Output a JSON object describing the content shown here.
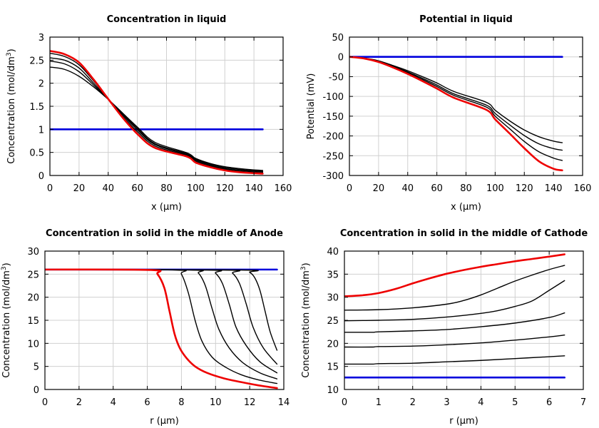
{
  "colors": {
    "initial": "#0000dd",
    "final": "#ee0000",
    "intermediate": "#000000",
    "grid": "#d0d0d0"
  },
  "chart_data": [
    {
      "type": "line",
      "title": "Concentration in liquid",
      "xlabel": "x (µm)",
      "ylabel_main": "Concentration (mol/dm",
      "ylabel_sup": "3",
      "ylabel_end": ")",
      "xlim": [
        0,
        160
      ],
      "ylim": [
        0,
        3
      ],
      "xticks": [
        0,
        20,
        40,
        60,
        80,
        100,
        120,
        140,
        160
      ],
      "yticks": [
        0,
        0.5,
        1,
        1.5,
        2,
        2.5,
        3
      ],
      "series": [
        {
          "name": "initial",
          "role": "initial",
          "x": [
            0,
            146
          ],
          "y": [
            1.0,
            1.0
          ]
        },
        {
          "name": "t1",
          "role": "intermediate",
          "x": [
            0,
            10,
            20,
            30,
            40,
            50,
            60,
            72,
            94,
            100,
            110,
            120,
            130,
            140,
            146
          ],
          "y": [
            2.35,
            2.3,
            2.15,
            1.92,
            1.65,
            1.35,
            1.05,
            0.72,
            0.49,
            0.37,
            0.26,
            0.19,
            0.15,
            0.12,
            0.11
          ]
        },
        {
          "name": "t2",
          "role": "intermediate",
          "x": [
            0,
            10,
            20,
            30,
            40,
            50,
            60,
            72,
            94,
            100,
            110,
            120,
            130,
            140,
            146
          ],
          "y": [
            2.48,
            2.42,
            2.25,
            1.96,
            1.65,
            1.33,
            1.02,
            0.69,
            0.47,
            0.35,
            0.24,
            0.17,
            0.13,
            0.1,
            0.09
          ]
        },
        {
          "name": "t3",
          "role": "intermediate",
          "x": [
            0,
            10,
            20,
            30,
            40,
            50,
            60,
            72,
            94,
            100,
            110,
            120,
            130,
            140,
            146
          ],
          "y": [
            2.55,
            2.5,
            2.33,
            2.0,
            1.66,
            1.31,
            0.99,
            0.67,
            0.45,
            0.33,
            0.22,
            0.15,
            0.11,
            0.09,
            0.08
          ]
        },
        {
          "name": "t4",
          "role": "intermediate",
          "x": [
            0,
            10,
            20,
            30,
            40,
            50,
            60,
            72,
            94,
            100,
            110,
            120,
            130,
            140,
            146
          ],
          "y": [
            2.65,
            2.58,
            2.4,
            2.05,
            1.66,
            1.28,
            0.95,
            0.64,
            0.43,
            0.31,
            0.2,
            0.13,
            0.09,
            0.07,
            0.06
          ]
        },
        {
          "name": "final",
          "role": "final",
          "x": [
            0,
            10,
            20,
            30,
            40,
            50,
            60,
            72,
            94,
            100,
            110,
            120,
            130,
            140,
            146
          ],
          "y": [
            2.7,
            2.63,
            2.45,
            2.08,
            1.66,
            1.25,
            0.9,
            0.6,
            0.41,
            0.28,
            0.18,
            0.11,
            0.07,
            0.05,
            0.04
          ]
        }
      ]
    },
    {
      "type": "line",
      "title": "Potential in liquid",
      "xlabel": "x (µm)",
      "ylabel_main": "Potential (mV)",
      "ylabel_sup": "",
      "ylabel_end": "",
      "xlim": [
        0,
        160
      ],
      "ylim": [
        -300,
        50
      ],
      "xticks": [
        0,
        20,
        40,
        60,
        80,
        100,
        120,
        140,
        160
      ],
      "yticks": [
        -300,
        -250,
        -200,
        -150,
        -100,
        -50,
        0,
        50
      ],
      "series": [
        {
          "name": "initial",
          "role": "initial",
          "x": [
            0,
            146
          ],
          "y": [
            0,
            0
          ]
        },
        {
          "name": "t1",
          "role": "intermediate",
          "x": [
            0,
            10,
            20,
            30,
            40,
            50,
            60,
            72,
            94,
            100,
            110,
            120,
            130,
            140,
            146
          ],
          "y": [
            0,
            -3,
            -10,
            -22,
            -35,
            -50,
            -66,
            -88,
            -115,
            -135,
            -162,
            -185,
            -202,
            -213,
            -217
          ]
        },
        {
          "name": "t2",
          "role": "intermediate",
          "x": [
            0,
            10,
            20,
            30,
            40,
            50,
            60,
            72,
            94,
            100,
            110,
            120,
            130,
            140,
            146
          ],
          "y": [
            0,
            -3,
            -11,
            -24,
            -38,
            -54,
            -71,
            -94,
            -122,
            -143,
            -172,
            -199,
            -220,
            -232,
            -236
          ]
        },
        {
          "name": "t3",
          "role": "intermediate",
          "x": [
            0,
            10,
            20,
            30,
            40,
            50,
            60,
            72,
            94,
            100,
            110,
            120,
            130,
            140,
            146
          ],
          "y": [
            0,
            -4,
            -12,
            -25,
            -40,
            -57,
            -75,
            -98,
            -127,
            -150,
            -182,
            -214,
            -240,
            -256,
            -262
          ]
        },
        {
          "name": "final",
          "role": "final",
          "x": [
            0,
            10,
            20,
            30,
            40,
            50,
            60,
            72,
            94,
            100,
            110,
            120,
            130,
            140,
            146
          ],
          "y": [
            0,
            -4,
            -13,
            -27,
            -43,
            -61,
            -80,
            -104,
            -134,
            -158,
            -194,
            -231,
            -264,
            -283,
            -287
          ]
        }
      ]
    },
    {
      "type": "line",
      "title": "Concentration in solid in the middle of Anode",
      "xlabel": "r (µm)",
      "ylabel_main": "Concentration (mol/dm",
      "ylabel_sup": "3",
      "ylabel_end": ")",
      "xlim": [
        0,
        14
      ],
      "ylim": [
        0,
        30
      ],
      "xticks": [
        0,
        2,
        4,
        6,
        8,
        10,
        12,
        14
      ],
      "yticks": [
        0,
        5,
        10,
        15,
        20,
        25,
        30
      ],
      "series": [
        {
          "name": "initial",
          "role": "initial",
          "x": [
            0,
            13.6
          ],
          "y": [
            26,
            26
          ]
        },
        {
          "name": "t1",
          "role": "intermediate",
          "x": [
            0,
            11.5,
            12,
            12.3,
            12.6,
            12.9,
            13.2,
            13.6
          ],
          "y": [
            26,
            25.9,
            25.4,
            24.2,
            21.5,
            17,
            12.5,
            8.5
          ]
        },
        {
          "name": "t2",
          "role": "intermediate",
          "x": [
            0,
            10.5,
            11,
            11.4,
            11.8,
            12.2,
            12.8,
            13.6
          ],
          "y": [
            26,
            25.9,
            25.2,
            23,
            18.5,
            13.5,
            9,
            5.5
          ]
        },
        {
          "name": "t3",
          "role": "intermediate",
          "x": [
            0,
            9.5,
            10,
            10.4,
            10.8,
            11.2,
            11.8,
            12.6,
            13.6
          ],
          "y": [
            26,
            25.9,
            25.2,
            23,
            18.5,
            13.5,
            9.5,
            6,
            3.6
          ]
        },
        {
          "name": "t4",
          "role": "intermediate",
          "x": [
            0,
            8.5,
            9,
            9.4,
            9.8,
            10.2,
            10.8,
            11.6,
            12.6,
            13.6
          ],
          "y": [
            26,
            25.9,
            25.2,
            22.5,
            17.5,
            13,
            9,
            5.8,
            3.6,
            2.3
          ]
        },
        {
          "name": "t5",
          "role": "intermediate",
          "x": [
            0,
            7.6,
            8,
            8.4,
            8.8,
            9.2,
            9.8,
            10.6,
            11.5,
            12.5,
            13.6
          ],
          "y": [
            26,
            25.9,
            25,
            21,
            15,
            10.5,
            7,
            4.8,
            3.2,
            2.1,
            1.3
          ]
        },
        {
          "name": "final",
          "role": "final",
          "x": [
            0,
            6.2,
            6.6,
            7,
            7.3,
            7.6,
            7.9,
            8.3,
            8.8,
            9.5,
            10.5,
            11.5,
            12.5,
            13.6
          ],
          "y": [
            26,
            25.9,
            25,
            22,
            17,
            12,
            9,
            6.8,
            5,
            3.6,
            2.4,
            1.6,
            0.9,
            0.3
          ]
        }
      ]
    },
    {
      "type": "line",
      "title": "Concentration in solid in the middle of Cathode",
      "xlabel": "r (µm)",
      "ylabel_main": "Concentration (mol/dm",
      "ylabel_sup": "3",
      "ylabel_end": ")",
      "xlim": [
        0,
        7
      ],
      "ylim": [
        10,
        40
      ],
      "xticks": [
        0,
        1,
        2,
        3,
        4,
        5,
        6,
        7
      ],
      "yticks": [
        10,
        15,
        20,
        25,
        30,
        35,
        40
      ],
      "series": [
        {
          "name": "initial",
          "role": "initial",
          "x": [
            0,
            6.45
          ],
          "y": [
            12.6,
            12.6
          ]
        },
        {
          "name": "t1",
          "role": "intermediate",
          "x": [
            0,
            0.8,
            1,
            2,
            3,
            4,
            5,
            6,
            6.45
          ],
          "y": [
            15.5,
            15.5,
            15.6,
            15.7,
            16,
            16.3,
            16.7,
            17.1,
            17.3
          ]
        },
        {
          "name": "t2",
          "role": "intermediate",
          "x": [
            0,
            0.8,
            1,
            2,
            3,
            4,
            5,
            6,
            6.45
          ],
          "y": [
            19.2,
            19.2,
            19.3,
            19.4,
            19.7,
            20.1,
            20.7,
            21.4,
            21.8
          ]
        },
        {
          "name": "t3",
          "role": "intermediate",
          "x": [
            0,
            0.8,
            1,
            2,
            3,
            4,
            5,
            6,
            6.45
          ],
          "y": [
            22.4,
            22.4,
            22.5,
            22.7,
            23,
            23.6,
            24.4,
            25.6,
            26.6
          ]
        },
        {
          "name": "t4",
          "role": "intermediate",
          "x": [
            0,
            1,
            2,
            3,
            4,
            4.5,
            5,
            5.5,
            6,
            6.45
          ],
          "y": [
            24.9,
            25,
            25.2,
            25.7,
            26.5,
            27.1,
            28,
            29.2,
            31.5,
            33.6
          ]
        },
        {
          "name": "t5",
          "role": "intermediate",
          "x": [
            0,
            1,
            2,
            3,
            3.5,
            4,
            4.5,
            5,
            5.5,
            6,
            6.45
          ],
          "y": [
            27.2,
            27.3,
            27.7,
            28.5,
            29.3,
            30.5,
            32,
            33.5,
            34.8,
            36,
            36.9
          ]
        },
        {
          "name": "final",
          "role": "final",
          "x": [
            0,
            0.5,
            1,
            1.5,
            2,
            2.5,
            3,
            3.5,
            4,
            4.5,
            5,
            5.5,
            6,
            6.45
          ],
          "y": [
            30.2,
            30.4,
            30.9,
            31.8,
            33,
            34.1,
            35.1,
            35.9,
            36.6,
            37.2,
            37.8,
            38.3,
            38.8,
            39.3
          ]
        }
      ]
    }
  ]
}
